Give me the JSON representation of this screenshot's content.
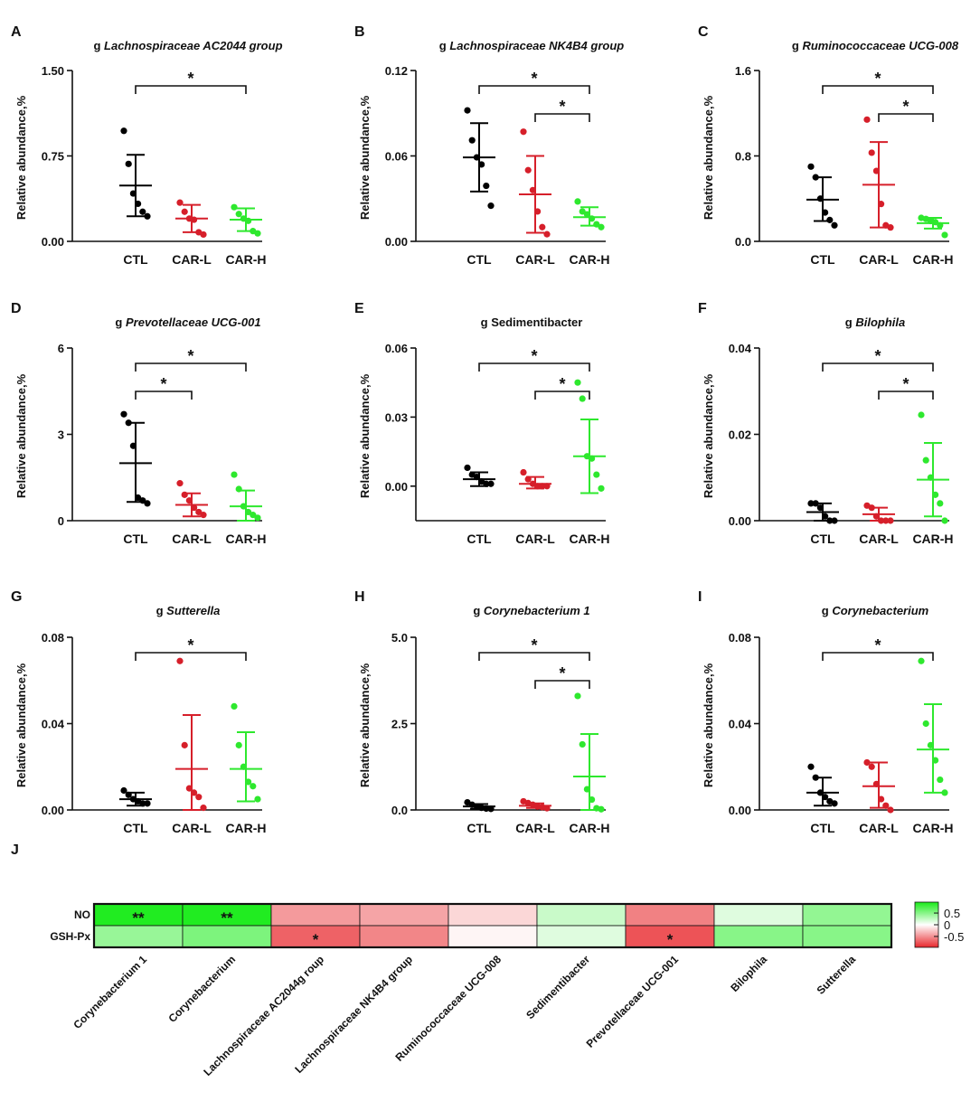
{
  "panels": [
    {
      "label": "A",
      "prefix": "g",
      "name": "Lachnospiraceae AC2044 group",
      "ylabel": "Relative abundance,%",
      "ylim": [
        0,
        1.5
      ],
      "ticks": [
        "0.00",
        "0.75",
        "1.50"
      ],
      "categories": [
        "CTL",
        "CAR-L",
        "CAR-H"
      ],
      "groups": [
        {
          "points": [
            0.97,
            0.68,
            0.42,
            0.33,
            0.26,
            0.22
          ],
          "mean": 0.49,
          "sd_low": 0.22,
          "sd_high": 0.76
        },
        {
          "points": [
            0.34,
            0.26,
            0.2,
            0.19,
            0.08,
            0.06
          ],
          "mean": 0.2,
          "sd_low": 0.08,
          "sd_high": 0.32
        },
        {
          "points": [
            0.3,
            0.24,
            0.2,
            0.18,
            0.09,
            0.07
          ],
          "mean": 0.19,
          "sd_low": 0.09,
          "sd_high": 0.29
        }
      ],
      "sig": [
        {
          "from": 0,
          "to": 2,
          "label": "*"
        }
      ]
    },
    {
      "label": "B",
      "prefix": "g",
      "name": "Lachnospiraceae NK4B4 group",
      "ylabel": "Relative abundance,%",
      "ylim": [
        0,
        0.12
      ],
      "ticks": [
        "0.00",
        "0.06",
        "0.12"
      ],
      "categories": [
        "CTL",
        "CAR-L",
        "CAR-H"
      ],
      "groups": [
        {
          "points": [
            0.092,
            0.071,
            0.059,
            0.054,
            0.039,
            0.025
          ],
          "mean": 0.059,
          "sd_low": 0.035,
          "sd_high": 0.083
        },
        {
          "points": [
            0.077,
            0.05,
            0.036,
            0.021,
            0.01,
            0.005
          ],
          "mean": 0.033,
          "sd_low": 0.006,
          "sd_high": 0.06
        },
        {
          "points": [
            0.028,
            0.021,
            0.019,
            0.016,
            0.012,
            0.01
          ],
          "mean": 0.017,
          "sd_low": 0.011,
          "sd_high": 0.024
        }
      ],
      "sig": [
        {
          "from": 0,
          "to": 2,
          "label": "*"
        },
        {
          "from": 1,
          "to": 2,
          "label": "*"
        }
      ]
    },
    {
      "label": "C",
      "prefix": "g",
      "name": "Ruminococcaceae UCG-008",
      "ylabel": "Relative abundance,%",
      "ylim": [
        0,
        1.6
      ],
      "ticks": [
        "0.0",
        "0.8",
        "1.6"
      ],
      "categories": [
        "CTL",
        "CAR-L",
        "CAR-H"
      ],
      "groups": [
        {
          "points": [
            0.7,
            0.6,
            0.4,
            0.27,
            0.2,
            0.15
          ],
          "mean": 0.39,
          "sd_low": 0.19,
          "sd_high": 0.6
        },
        {
          "points": [
            1.14,
            0.83,
            0.66,
            0.35,
            0.15,
            0.13
          ],
          "mean": 0.53,
          "sd_low": 0.13,
          "sd_high": 0.93
        },
        {
          "points": [
            0.22,
            0.21,
            0.19,
            0.18,
            0.15,
            0.06
          ],
          "mean": 0.17,
          "sd_low": 0.12,
          "sd_high": 0.22
        }
      ],
      "sig": [
        {
          "from": 0,
          "to": 2,
          "label": "*"
        },
        {
          "from": 1,
          "to": 2,
          "label": "*"
        }
      ]
    },
    {
      "label": "D",
      "prefix": "g",
      "name": "Prevotellaceae UCG-001",
      "ylabel": "Relative abundance,%",
      "ylim": [
        0,
        6
      ],
      "ticks": [
        "0",
        "3",
        "6"
      ],
      "categories": [
        "CTL",
        "CAR-L",
        "CAR-H"
      ],
      "groups": [
        {
          "points": [
            3.7,
            3.4,
            2.6,
            0.8,
            0.7,
            0.6
          ],
          "mean": 2.0,
          "sd_low": 0.65,
          "sd_high": 3.4
        },
        {
          "points": [
            1.3,
            0.9,
            0.7,
            0.45,
            0.3,
            0.2
          ],
          "mean": 0.55,
          "sd_low": 0.15,
          "sd_high": 0.95
        },
        {
          "points": [
            1.6,
            1.1,
            0.5,
            0.3,
            0.2,
            0.1
          ],
          "mean": 0.5,
          "sd_low": 0.0,
          "sd_high": 1.05
        }
      ],
      "sig": [
        {
          "from": 0,
          "to": 1,
          "label": "*"
        },
        {
          "from": 0,
          "to": 2,
          "label": "*"
        }
      ]
    },
    {
      "label": "E",
      "prefix": "g",
      "name": "Sedimentibacter",
      "ylabel": "Relative abundance,%",
      "ylim": [
        -0.015,
        0.06
      ],
      "ticks": [
        "0.00",
        "0.03",
        "0.06"
      ],
      "tickvals": [
        0,
        0.03,
        0.06
      ],
      "categories": [
        "CTL",
        "CAR-L",
        "CAR-H"
      ],
      "groups": [
        {
          "points": [
            0.008,
            0.005,
            0.004,
            0.002,
            0.001,
            0.001
          ],
          "mean": 0.003,
          "sd_low": 0.0,
          "sd_high": 0.006
        },
        {
          "points": [
            0.006,
            0.003,
            0.001,
            0.0,
            0.0,
            0.0
          ],
          "mean": 0.001,
          "sd_low": -0.001,
          "sd_high": 0.004
        },
        {
          "points": [
            0.045,
            0.038,
            0.013,
            0.012,
            0.005,
            -0.001
          ],
          "mean": 0.013,
          "sd_low": -0.003,
          "sd_high": 0.029
        }
      ],
      "sig": [
        {
          "from": 0,
          "to": 2,
          "label": "*"
        },
        {
          "from": 1,
          "to": 2,
          "label": "*"
        }
      ]
    },
    {
      "label": "F",
      "prefix": "g",
      "name": "Bilophila",
      "ylabel": "Relative abundance,%",
      "ylim": [
        0,
        0.04
      ],
      "ticks": [
        "0.00",
        "0.02",
        "0.04"
      ],
      "categories": [
        "CTL",
        "CAR-L",
        "CAR-H"
      ],
      "groups": [
        {
          "points": [
            0.004,
            0.004,
            0.003,
            0.001,
            0.0,
            0.0
          ],
          "mean": 0.002,
          "sd_low": 0.0,
          "sd_high": 0.004
        },
        {
          "points": [
            0.0035,
            0.003,
            0.001,
            0.0,
            0.0,
            0.0
          ],
          "mean": 0.0015,
          "sd_low": 0.0,
          "sd_high": 0.003
        },
        {
          "points": [
            0.0245,
            0.014,
            0.01,
            0.006,
            0.004,
            0.0
          ],
          "mean": 0.0095,
          "sd_low": 0.001,
          "sd_high": 0.018
        }
      ],
      "sig": [
        {
          "from": 0,
          "to": 2,
          "label": "*"
        },
        {
          "from": 1,
          "to": 2,
          "label": "*"
        }
      ]
    },
    {
      "label": "G",
      "prefix": "g",
      "name": "Sutterella",
      "ylabel": "Relative abundance,%",
      "ylim": [
        0,
        0.08
      ],
      "ticks": [
        "0.00",
        "0.04",
        "0.08"
      ],
      "categories": [
        "CTL",
        "CAR-L",
        "CAR-H"
      ],
      "groups": [
        {
          "points": [
            0.009,
            0.007,
            0.005,
            0.004,
            0.003,
            0.003
          ],
          "mean": 0.005,
          "sd_low": 0.002,
          "sd_high": 0.008
        },
        {
          "points": [
            0.069,
            0.03,
            0.01,
            0.008,
            0.006,
            0.001
          ],
          "mean": 0.019,
          "sd_low": 0.0,
          "sd_high": 0.044
        },
        {
          "points": [
            0.048,
            0.03,
            0.02,
            0.013,
            0.011,
            0.005
          ],
          "mean": 0.019,
          "sd_low": 0.004,
          "sd_high": 0.036
        }
      ],
      "sig": [
        {
          "from": 0,
          "to": 2,
          "label": "*"
        }
      ]
    },
    {
      "label": "H",
      "prefix": "g",
      "name": "Corynebacterium 1",
      "ylabel": "Relative abundance,%",
      "ylim": [
        0,
        5
      ],
      "ticks": [
        "0.0",
        "2.5",
        "5.0"
      ],
      "categories": [
        "CTL",
        "CAR-L",
        "CAR-H"
      ],
      "groups": [
        {
          "points": [
            0.22,
            0.15,
            0.1,
            0.06,
            0.04,
            0.03
          ],
          "mean": 0.1,
          "sd_low": 0.03,
          "sd_high": 0.17
        },
        {
          "points": [
            0.25,
            0.2,
            0.15,
            0.1,
            0.08,
            0.05
          ],
          "mean": 0.12,
          "sd_low": 0.06,
          "sd_high": 0.19
        },
        {
          "points": [
            3.3,
            1.9,
            0.6,
            0.3,
            0.05,
            0.02
          ],
          "mean": 0.97,
          "sd_low": 0.0,
          "sd_high": 2.2
        }
      ],
      "sig": [
        {
          "from": 0,
          "to": 2,
          "label": "*"
        },
        {
          "from": 1,
          "to": 2,
          "label": "*"
        }
      ]
    },
    {
      "label": "I",
      "prefix": "g",
      "name": "Corynebacterium",
      "ylabel": "Relative abundance,%",
      "ylim": [
        0,
        0.08
      ],
      "ticks": [
        "0.00",
        "0.04",
        "0.08"
      ],
      "categories": [
        "CTL",
        "CAR-L",
        "CAR-H"
      ],
      "groups": [
        {
          "points": [
            0.02,
            0.015,
            0.008,
            0.006,
            0.004,
            0.003
          ],
          "mean": 0.008,
          "sd_low": 0.002,
          "sd_high": 0.015
        },
        {
          "points": [
            0.022,
            0.02,
            0.012,
            0.005,
            0.002,
            0.0
          ],
          "mean": 0.011,
          "sd_low": 0.001,
          "sd_high": 0.022
        },
        {
          "points": [
            0.069,
            0.04,
            0.03,
            0.023,
            0.014,
            0.008
          ],
          "mean": 0.028,
          "sd_low": 0.008,
          "sd_high": 0.049
        }
      ],
      "sig": [
        {
          "from": 0,
          "to": 2,
          "label": "*"
        }
      ]
    }
  ],
  "heatmap": {
    "label": "J",
    "rows": [
      "NO",
      "GSH-Px"
    ],
    "columns": [
      "Corynebacterium 1",
      "Corynebacterium",
      "Lachnospiraceae AC2044g roup",
      "Lachnospiraceae NK4B4 group",
      "Ruminococcaceae UCG-008",
      "Sedimentibacter",
      "Prevotellaceae UCG-001",
      "Bilophila",
      "Sutterella"
    ],
    "values": [
      [
        0.82,
        0.82,
        -0.4,
        -0.36,
        -0.16,
        0.2,
        -0.5,
        0.12,
        0.4
      ],
      [
        0.38,
        0.48,
        -0.62,
        -0.48,
        -0.04,
        0.12,
        -0.68,
        0.44,
        0.44
      ]
    ],
    "stars": [
      [
        "**",
        "**",
        "",
        "",
        "",
        "",
        "",
        "",
        ""
      ],
      [
        "",
        "",
        "*",
        "",
        "",
        "",
        "*",
        "",
        ""
      ]
    ],
    "colorbar_ticks": [
      "0.5",
      "0",
      "-0.5"
    ],
    "colorbar_values": [
      0.5,
      0,
      -0.5
    ]
  },
  "colors": {
    "CTL": "#000000",
    "CAR-L": "#d61f2a",
    "CAR-H": "#2ee82e"
  }
}
